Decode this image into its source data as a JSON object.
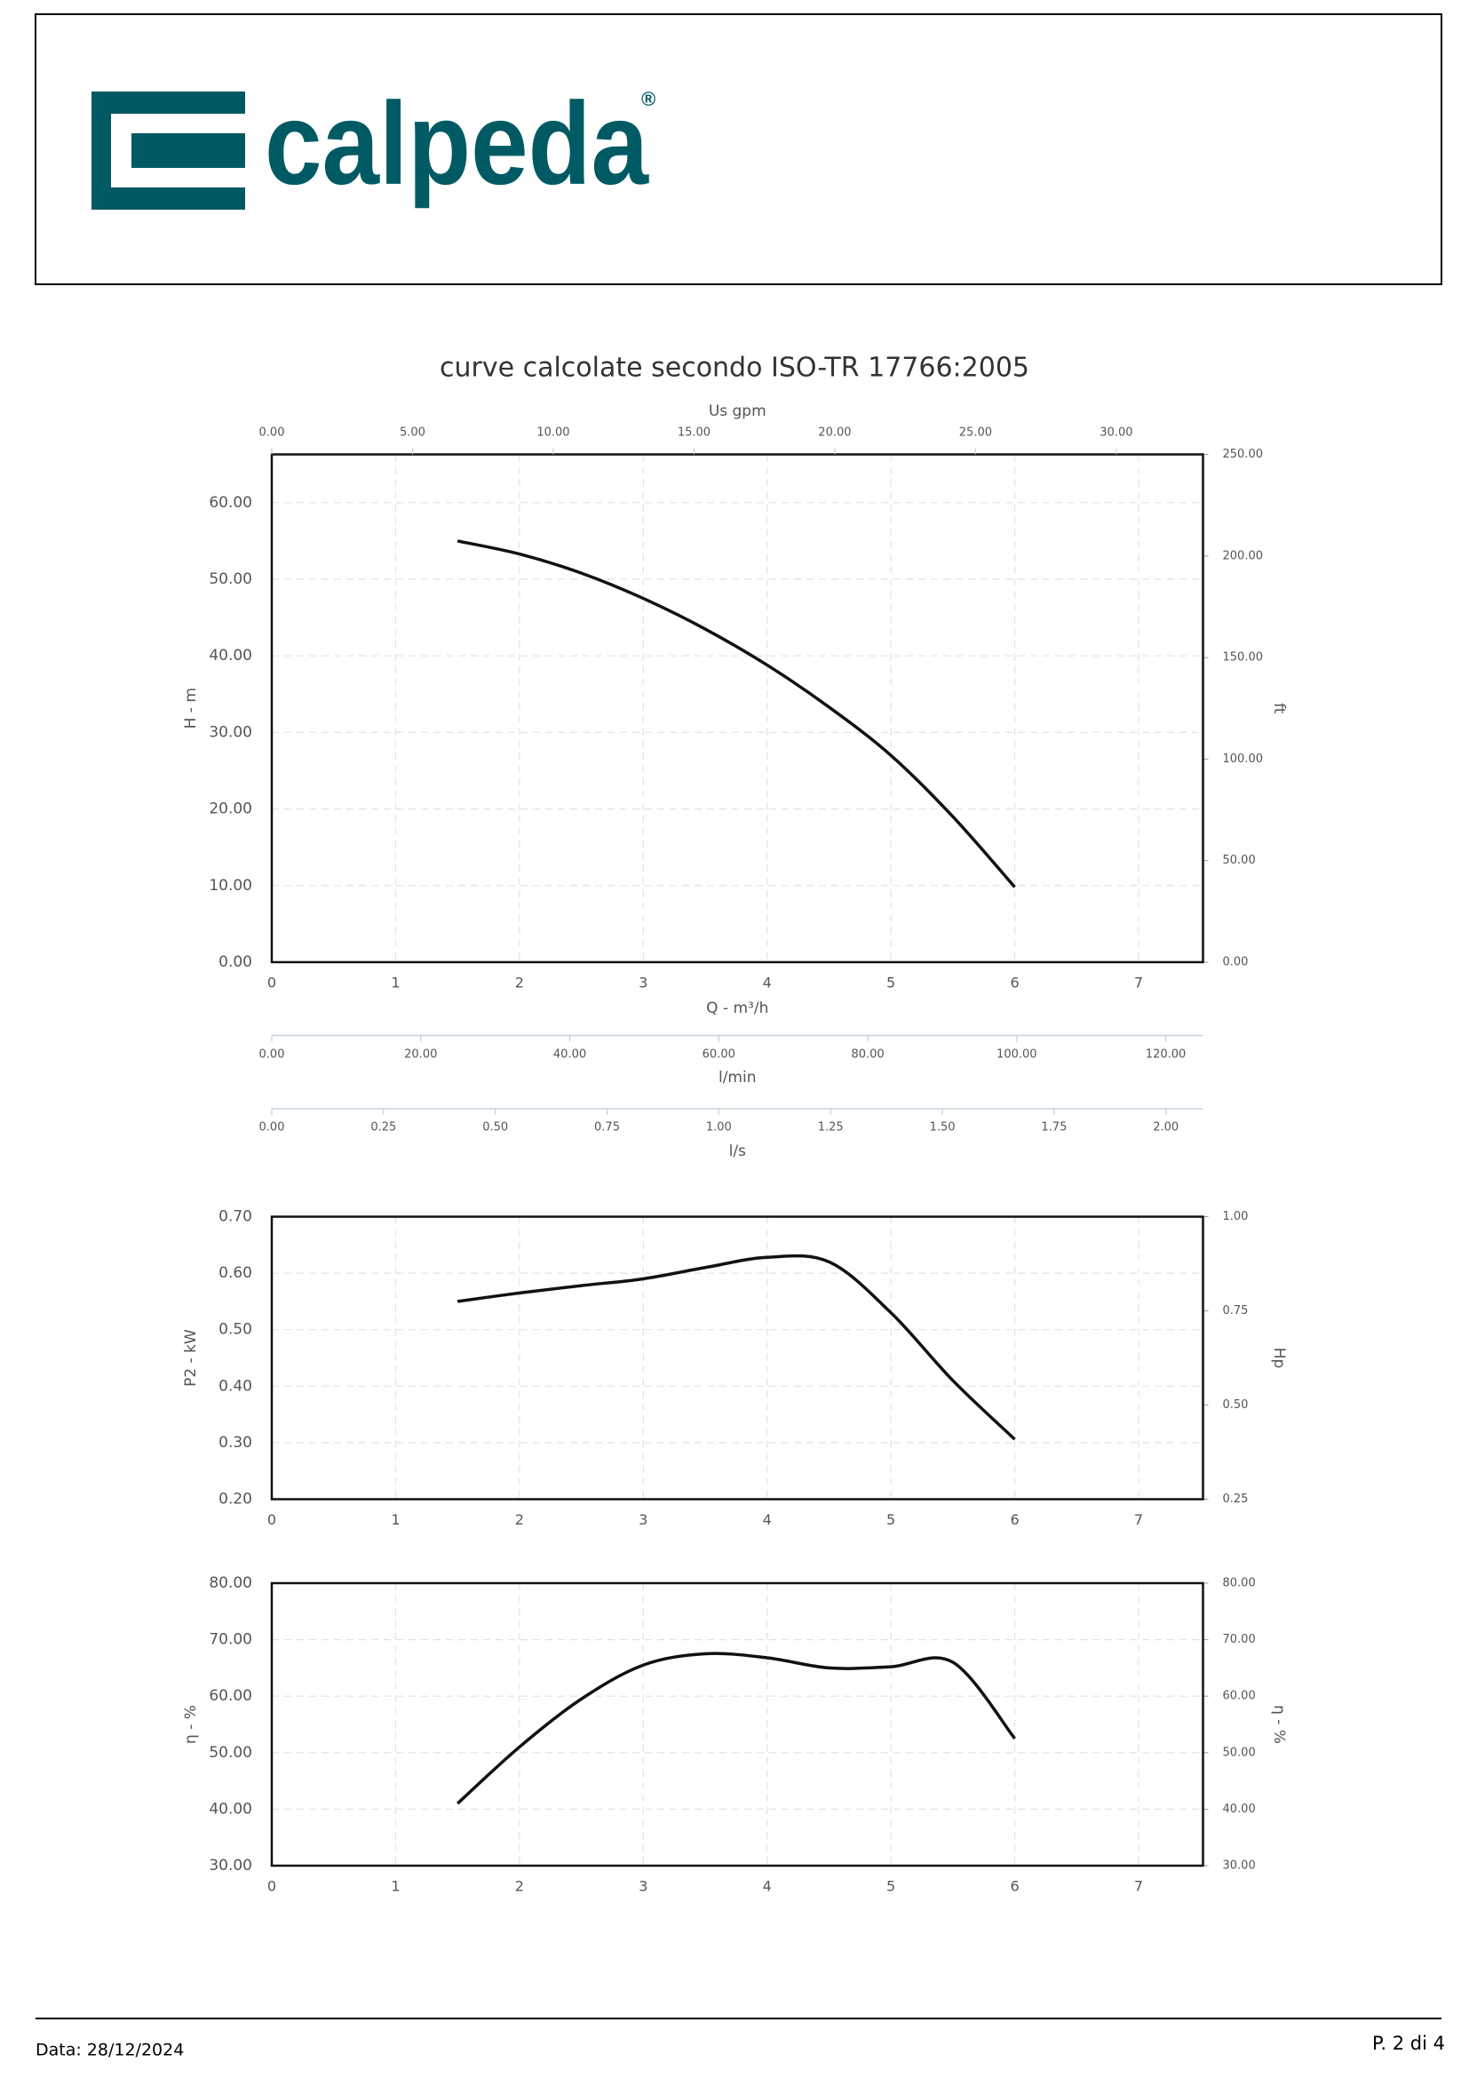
{
  "header": {
    "logo_text": "calpeda",
    "registered": "®"
  },
  "title": "curve calcolate secondo ISO-TR 17766:2005",
  "chart_data": [
    {
      "type": "line",
      "x": [
        1.5,
        2,
        2.5,
        3,
        3.5,
        4,
        4.5,
        5,
        5.5,
        6
      ],
      "values": [
        55,
        53.3,
        50.8,
        47.5,
        43.5,
        38.8,
        33.3,
        27,
        19,
        9.8
      ],
      "color": "#111111",
      "xlim": [
        0,
        7.52
      ],
      "xticks": [
        0,
        1,
        2,
        3,
        4,
        5,
        6,
        7
      ],
      "ylim": [
        0,
        66.3
      ],
      "yticks": [
        {
          "value": 0,
          "label": "0.00"
        },
        {
          "value": 10,
          "label": "10.00"
        },
        {
          "value": 20,
          "label": "20.00"
        },
        {
          "value": 30,
          "label": "30.00"
        },
        {
          "value": 40,
          "label": "40.00"
        },
        {
          "value": 50,
          "label": "50.00"
        },
        {
          "value": 60,
          "label": "60.00"
        }
      ],
      "y2lim": [
        0,
        250
      ],
      "y2ticks": [
        {
          "value": 0,
          "label": "0.00"
        },
        {
          "value": 50,
          "label": "50.00"
        },
        {
          "value": 100,
          "label": "100.00"
        },
        {
          "value": 150,
          "label": "150.00"
        },
        {
          "value": 200,
          "label": "200.00"
        },
        {
          "value": 250,
          "label": "250.00"
        }
      ],
      "ylabel": "H - m",
      "y2label": "ft",
      "xlabel": "Q - m³/h",
      "grid": true,
      "secondary_x_axes": [
        {
          "label": "Us gpm",
          "xlim": [
            0,
            33.08
          ],
          "xticks": [
            {
              "value": 0,
              "label": "0.00"
            },
            {
              "value": 5,
              "label": "5.00"
            },
            {
              "value": 10,
              "label": "10.00"
            },
            {
              "value": 15,
              "label": "15.00"
            },
            {
              "value": 20,
              "label": "20.00"
            },
            {
              "value": 25,
              "label": "25.00"
            },
            {
              "value": 30,
              "label": "30.00"
            }
          ]
        },
        {
          "label": "l/min",
          "xlim": [
            0,
            125
          ],
          "xticks": [
            {
              "value": 0,
              "label": "0.00"
            },
            {
              "value": 20,
              "label": "20.00"
            },
            {
              "value": 40,
              "label": "40.00"
            },
            {
              "value": 60,
              "label": "60.00"
            },
            {
              "value": 80,
              "label": "80.00"
            },
            {
              "value": 100,
              "label": "100.00"
            },
            {
              "value": 120,
              "label": "120.00"
            }
          ]
        },
        {
          "label": "l/s",
          "xlim": [
            0,
            2.083
          ],
          "xticks": [
            {
              "value": 0,
              "label": "0.00"
            },
            {
              "value": 0.25,
              "label": "0.25"
            },
            {
              "value": 0.5,
              "label": "0.50"
            },
            {
              "value": 0.75,
              "label": "0.75"
            },
            {
              "value": 1,
              "label": "1.00"
            },
            {
              "value": 1.25,
              "label": "1.25"
            },
            {
              "value": 1.5,
              "label": "1.50"
            },
            {
              "value": 1.75,
              "label": "1.75"
            },
            {
              "value": 2,
              "label": "2.00"
            }
          ]
        }
      ]
    },
    {
      "type": "line",
      "x": [
        1.5,
        2,
        2.5,
        3,
        3.5,
        4,
        4.5,
        5,
        5.5,
        6
      ],
      "values": [
        0.55,
        0.565,
        0.578,
        0.59,
        0.61,
        0.628,
        0.62,
        0.53,
        0.41,
        0.306
      ],
      "color": "#111111",
      "xlim": [
        0,
        7.52
      ],
      "xticks": [
        0,
        1,
        2,
        3,
        4,
        5,
        6,
        7
      ],
      "ylim": [
        0.2,
        0.7
      ],
      "yticks": [
        {
          "value": 0.2,
          "label": "0.20"
        },
        {
          "value": 0.3,
          "label": "0.30"
        },
        {
          "value": 0.4,
          "label": "0.40"
        },
        {
          "value": 0.5,
          "label": "0.50"
        },
        {
          "value": 0.6,
          "label": "0.60"
        },
        {
          "value": 0.7,
          "label": "0.70"
        }
      ],
      "y2lim": [
        0.25,
        1
      ],
      "y2ticks": [
        {
          "value": 0.25,
          "label": "0.25"
        },
        {
          "value": 0.5,
          "label": "0.50"
        },
        {
          "value": 0.75,
          "label": "0.75"
        },
        {
          "value": 1,
          "label": "1.00"
        }
      ],
      "ylabel": "P2 - kW",
      "y2label": "Hp",
      "grid": true
    },
    {
      "type": "line",
      "x": [
        1.5,
        2,
        2.5,
        3,
        3.5,
        4,
        4.5,
        5,
        5.5,
        6
      ],
      "values": [
        41,
        51,
        59.5,
        65.5,
        67.5,
        66.8,
        65,
        65.2,
        66,
        52.5
      ],
      "color": "#111111",
      "xlim": [
        0,
        7.52
      ],
      "xticks": [
        0,
        1,
        2,
        3,
        4,
        5,
        6,
        7
      ],
      "ylim": [
        30,
        80
      ],
      "yticks": [
        {
          "value": 30,
          "label": "30.00"
        },
        {
          "value": 40,
          "label": "40.00"
        },
        {
          "value": 50,
          "label": "50.00"
        },
        {
          "value": 60,
          "label": "60.00"
        },
        {
          "value": 70,
          "label": "70.00"
        },
        {
          "value": 80,
          "label": "80.00"
        }
      ],
      "y2lim": [
        30,
        80
      ],
      "y2ticks": [
        {
          "value": 30,
          "label": "30.00"
        },
        {
          "value": 40,
          "label": "40.00"
        },
        {
          "value": 50,
          "label": "50.00"
        },
        {
          "value": 60,
          "label": "60.00"
        },
        {
          "value": 70,
          "label": "70.00"
        },
        {
          "value": 80,
          "label": "80.00"
        }
      ],
      "ylabel": "η - %",
      "y2label": "η - %",
      "grid": true
    }
  ],
  "footer": {
    "date": "Data: 28/12/2024",
    "page": "P. 2 di 4"
  }
}
